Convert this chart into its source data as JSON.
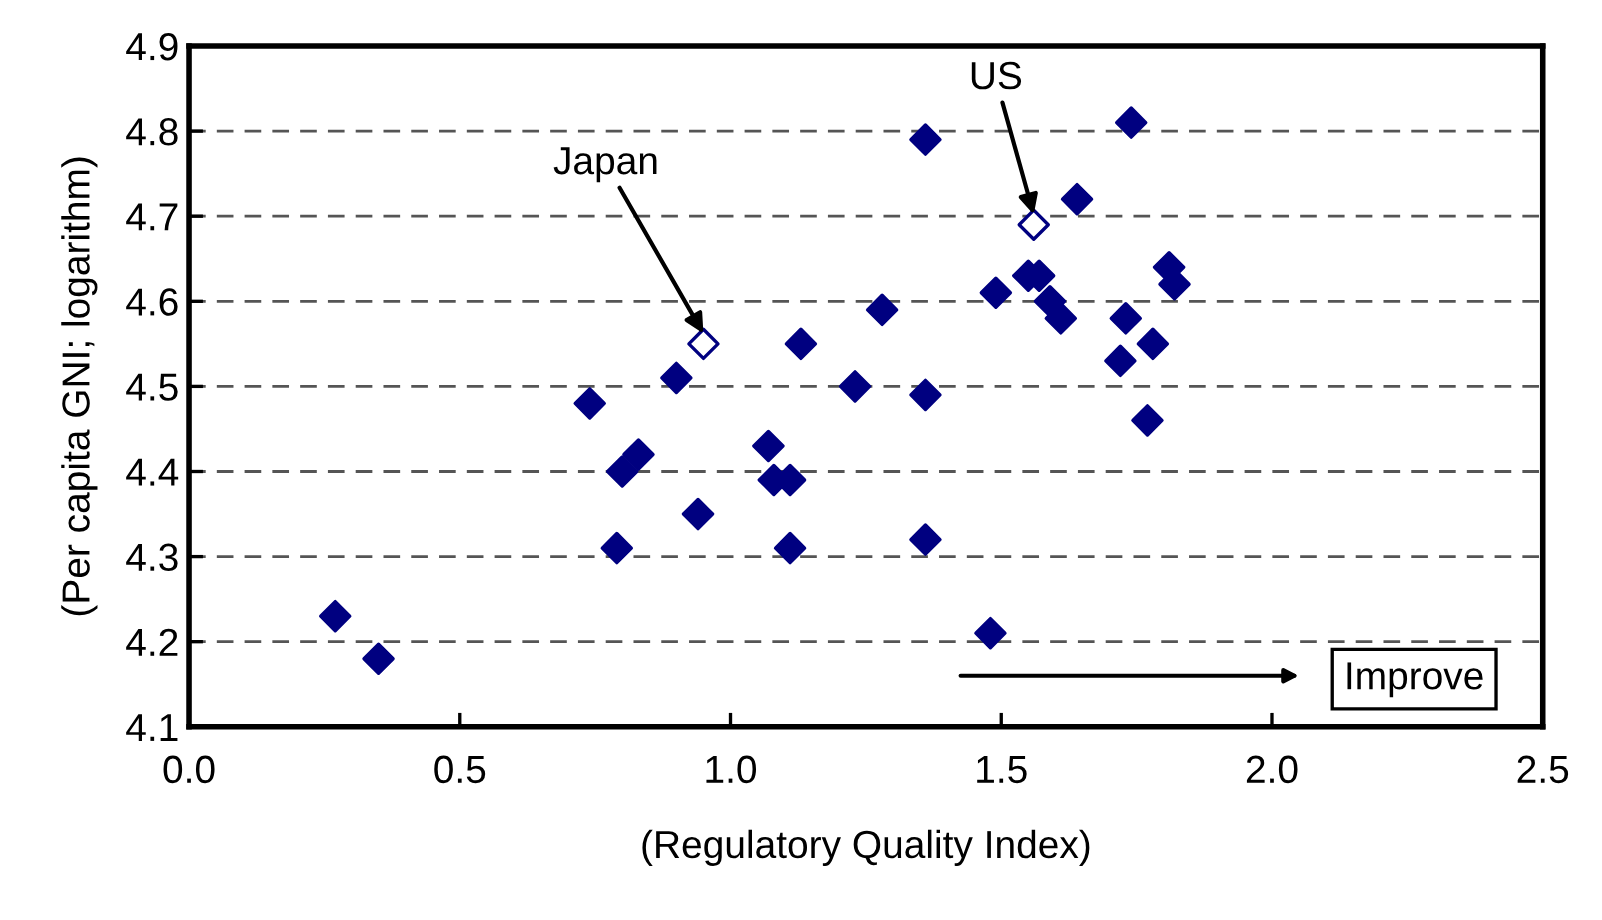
{
  "chart_data": {
    "type": "scatter",
    "xlabel": "(Regulatory Quality Index)",
    "ylabel": "(Per capita GNI; logarithm)",
    "marker": "diamond",
    "grid": "y",
    "legend": false,
    "xlim": [
      0,
      2.5
    ],
    "xticks": [
      {
        "value": 0,
        "label": "0.0"
      },
      0.5,
      {
        "value": 1,
        "label": "1.0"
      },
      1.5,
      {
        "value": 2,
        "label": "2.0"
      },
      2.5
    ],
    "ylim": [
      4.1,
      4.9
    ],
    "yticks": [
      4.1,
      4.2,
      4.3,
      4.4,
      4.5,
      4.6,
      4.7,
      4.8,
      4.9
    ],
    "series": [
      {
        "color": "#000080",
        "x": [
          0.27,
          0.35,
          0.74,
          0.8,
          0.83,
          0.79,
          0.9,
          0.94,
          1.07,
          1.08,
          1.11,
          1.11,
          1.13,
          1.23,
          1.28,
          1.36,
          1.36,
          1.36,
          1.48,
          1.49,
          1.55,
          1.57,
          1.59,
          1.61,
          1.64,
          1.74,
          1.73,
          1.72,
          1.78,
          1.77,
          1.81,
          1.82
        ],
        "values": [
          4.23,
          4.18,
          4.48,
          4.4,
          4.42,
          4.31,
          4.51,
          4.35,
          4.43,
          4.39,
          4.39,
          4.31,
          4.55,
          4.5,
          4.59,
          4.49,
          4.79,
          4.32,
          4.21,
          4.61,
          4.63,
          4.63,
          4.6,
          4.58,
          4.72,
          4.81,
          4.58,
          4.53,
          4.55,
          4.46,
          4.64,
          4.62
        ]
      },
      {
        "color": "#000080",
        "x": [
          0.95,
          1.56
        ],
        "values": [
          4.55,
          4.69
        ]
      }
    ],
    "annotations": [
      {
        "text": "Japan",
        "x": 0.95,
        "y": 4.55
      },
      {
        "text": "US",
        "x": 1.56,
        "y": 4.69
      },
      "Improve"
    ]
  }
}
